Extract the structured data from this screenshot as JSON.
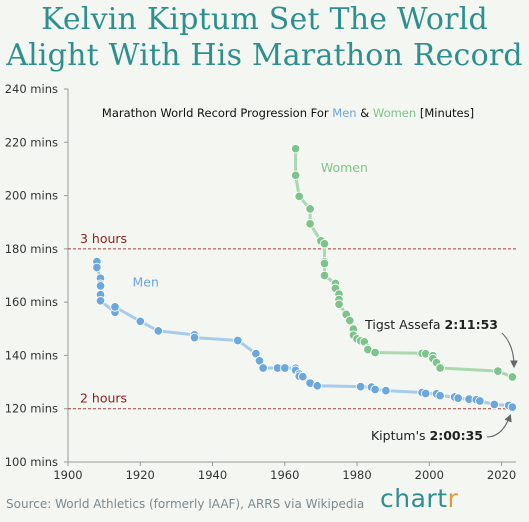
{
  "title_line1": "Kelvin Kiptum Set The World",
  "title_line2": "Alight With His Marathon Record",
  "source": "Source: World Athletics (formerly IAAF), ARRS via Wikipedia",
  "brand": {
    "main": "chart",
    "accent": "r",
    "accent_color": "#e39a3b",
    "color": "#2e8f8f"
  },
  "colors": {
    "men": "#6aa7dc",
    "women": "#7dc48b",
    "reference": "#b03a3a"
  },
  "chart_data": {
    "type": "scatter",
    "title": "Marathon World Record Progression For Men & Women [Minutes]",
    "subtitle_parts": [
      {
        "text": "Marathon World Record Progression For ",
        "color": "#111111"
      },
      {
        "text": "Men",
        "color": "#6aa7dc"
      },
      {
        "text": " & ",
        "color": "#111111"
      },
      {
        "text": "Women",
        "color": "#7dc48b"
      },
      {
        "text": " [Minutes]",
        "color": "#111111"
      }
    ],
    "xlim": [
      1900,
      2024
    ],
    "ylim": [
      100,
      240
    ],
    "x_ticks": [
      1900,
      1920,
      1940,
      1960,
      1980,
      2000,
      2020
    ],
    "y_ticks": [
      100,
      120,
      140,
      160,
      180,
      200,
      220,
      240
    ],
    "y_tick_labels": [
      "100 mins",
      "120 mins",
      "140 mins",
      "160 mins",
      "180 mins",
      "200 mins",
      "220 mins",
      "240 mins"
    ],
    "grid": false,
    "reference_lines": [
      {
        "label": "3 hours",
        "y": 180
      },
      {
        "label": "2 hours",
        "y": 120
      }
    ],
    "series": [
      {
        "name": "Men",
        "points": [
          [
            1908,
            175.2
          ],
          [
            1908,
            173.0
          ],
          [
            1909,
            169.0
          ],
          [
            1909,
            166.7
          ],
          [
            1909,
            166.1
          ],
          [
            1909,
            162.8
          ],
          [
            1909,
            160.5
          ],
          [
            1913,
            156.2
          ],
          [
            1913,
            158.2
          ],
          [
            1920,
            152.8
          ],
          [
            1925,
            149.2
          ],
          [
            1935,
            147.7
          ],
          [
            1935,
            146.7
          ],
          [
            1947,
            145.6
          ],
          [
            1952,
            140.7
          ],
          [
            1953,
            138.0
          ],
          [
            1954,
            135.3
          ],
          [
            1958,
            135.3
          ],
          [
            1960,
            135.3
          ],
          [
            1963,
            135.2
          ],
          [
            1963,
            134.4
          ],
          [
            1964,
            133.0
          ],
          [
            1964,
            132.2
          ],
          [
            1965,
            132.0
          ],
          [
            1967,
            129.6
          ],
          [
            1969,
            128.6
          ],
          [
            1981,
            128.3
          ],
          [
            1984,
            128.1
          ],
          [
            1985,
            127.2
          ],
          [
            1988,
            126.8
          ],
          [
            1998,
            126.1
          ],
          [
            1999,
            125.7
          ],
          [
            2002,
            125.6
          ],
          [
            2003,
            124.9
          ],
          [
            2007,
            124.4
          ],
          [
            2008,
            124.0
          ],
          [
            2011,
            123.6
          ],
          [
            2013,
            123.4
          ],
          [
            2014,
            122.9
          ],
          [
            2018,
            121.6
          ],
          [
            2022,
            121.2
          ],
          [
            2023,
            120.6
          ]
        ]
      },
      {
        "name": "Women",
        "points": [
          [
            1963,
            217.6
          ],
          [
            1963,
            207.6
          ],
          [
            1964,
            199.7
          ],
          [
            1967,
            195.0
          ],
          [
            1967,
            189.4
          ],
          [
            1970,
            183.0
          ],
          [
            1971,
            181.9
          ],
          [
            1971,
            175.1
          ],
          [
            1971,
            174.5
          ],
          [
            1971,
            170.0
          ],
          [
            1974,
            167.0
          ],
          [
            1974,
            165.2
          ],
          [
            1975,
            163.0
          ],
          [
            1975,
            161.0
          ],
          [
            1975,
            159.2
          ],
          [
            1977,
            155.4
          ],
          [
            1978,
            153.1
          ],
          [
            1979,
            149.9
          ],
          [
            1979,
            147.6
          ],
          [
            1980,
            146.2
          ],
          [
            1981,
            145.5
          ],
          [
            1982,
            145.1
          ],
          [
            1983,
            142.7
          ],
          [
            1983,
            142.2
          ],
          [
            1985,
            141.1
          ],
          [
            1998,
            140.8
          ],
          [
            1999,
            140.6
          ],
          [
            2001,
            139.9
          ],
          [
            2001,
            138.8
          ],
          [
            2002,
            137.3
          ],
          [
            2003,
            135.3
          ],
          [
            2019,
            134.1
          ],
          [
            2023,
            131.9
          ]
        ]
      }
    ],
    "series_labels": [
      {
        "text": "Men",
        "color": "#6aa7dc"
      },
      {
        "text": "Women",
        "color": "#7dc48b"
      }
    ],
    "annotations": [
      {
        "text": "Tigst Assefa ",
        "bold": "2:11:53"
      },
      {
        "text": "Kiptum's ",
        "bold": "2:00:35"
      }
    ]
  }
}
